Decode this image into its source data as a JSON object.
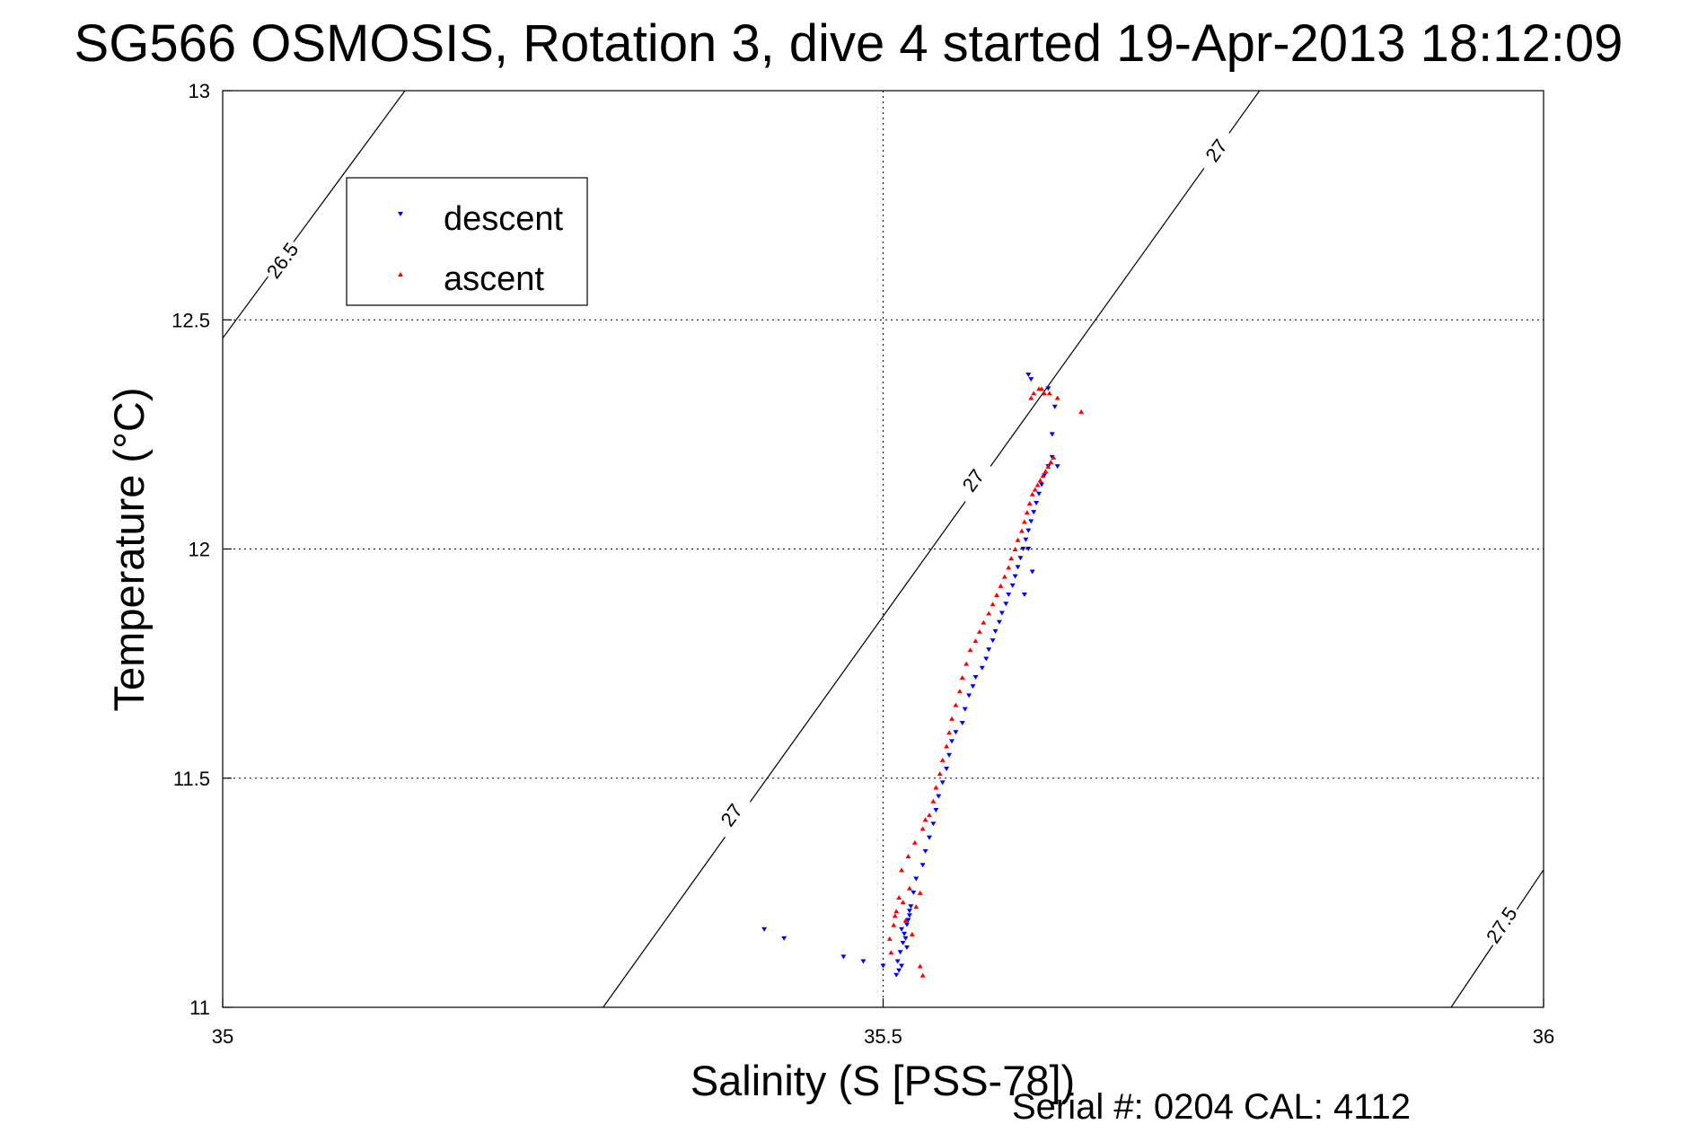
{
  "chart_data": {
    "type": "scatter",
    "title": "SG566 OSMOSIS, Rotation 3, dive 4 started 19-Apr-2013 18:12:09",
    "xlabel": "Salinity (S [PSS-78])",
    "ylabel": "Temperature (°C)",
    "xlim": [
      35,
      36
    ],
    "ylim": [
      11,
      13
    ],
    "xticks": [
      35,
      35.5,
      36
    ],
    "xtick_labels": [
      "35",
      "35.5",
      "36"
    ],
    "yticks": [
      11,
      11.5,
      12,
      12.5,
      13
    ],
    "ytick_labels": [
      "11",
      "11.5",
      "12",
      "12.5",
      "13"
    ],
    "grid": true,
    "legend_position": "top-left",
    "footnote": "Serial #: 0204  CAL: 4112",
    "isopycnals": [
      {
        "label": "26.5",
        "points": [
          [
            35.0,
            12.46
          ],
          [
            35.138,
            13.0
          ]
        ],
        "label_at": [
          35.045,
          12.63
        ]
      },
      {
        "label": "27",
        "points": [
          [
            35.288,
            11.0
          ],
          [
            35.785,
            13.0
          ]
        ],
        "label_at": [
          35.385,
          11.42
        ]
      },
      {
        "label": "27",
        "points": [
          [
            35.288,
            11.0
          ],
          [
            35.785,
            13.0
          ]
        ],
        "label_at": [
          35.568,
          12.15
        ]
      },
      {
        "label": "27",
        "points": [
          [
            35.288,
            11.0
          ],
          [
            35.785,
            13.0
          ]
        ],
        "label_at": [
          35.752,
          12.87
        ]
      },
      {
        "label": "27.5",
        "points": [
          [
            35.93,
            11.0
          ],
          [
            36.0,
            11.3
          ]
        ],
        "label_at": [
          35.968,
          11.18
        ]
      }
    ],
    "series": [
      {
        "name": "descent",
        "color": "#0000ff",
        "marker": "triangle-down",
        "x": [
          35.51,
          35.512,
          35.514,
          35.511,
          35.513,
          35.515,
          35.516,
          35.518,
          35.52,
          35.517,
          35.519,
          35.521,
          35.514,
          35.518,
          35.52,
          35.523,
          35.525,
          35.53,
          35.532,
          35.535,
          35.538,
          35.54,
          35.542,
          35.545,
          35.548,
          35.55,
          35.552,
          35.555,
          35.56,
          35.562,
          35.565,
          35.568,
          35.57,
          35.575,
          35.578,
          35.58,
          35.583,
          35.585,
          35.588,
          35.59,
          35.593,
          35.595,
          35.598,
          35.6,
          35.602,
          35.604,
          35.606,
          35.608,
          35.61,
          35.612,
          35.614,
          35.616,
          35.618,
          35.62,
          35.622,
          35.625,
          35.628,
          35.61,
          35.612,
          35.625,
          35.63,
          35.628,
          35.632,
          35.61,
          35.613,
          35.607,
          35.5,
          35.485,
          35.47,
          35.41,
          35.425
        ],
        "y": [
          11.07,
          11.08,
          11.09,
          11.1,
          11.12,
          11.14,
          11.16,
          11.18,
          11.2,
          11.15,
          11.19,
          11.22,
          11.17,
          11.13,
          11.21,
          11.25,
          11.28,
          11.31,
          11.34,
          11.37,
          11.4,
          11.43,
          11.46,
          11.49,
          11.52,
          11.55,
          11.58,
          11.6,
          11.62,
          11.65,
          11.68,
          11.7,
          11.72,
          11.74,
          11.76,
          11.78,
          11.8,
          11.82,
          11.84,
          11.86,
          11.88,
          11.9,
          11.92,
          11.94,
          11.96,
          11.98,
          12.0,
          12.02,
          12.04,
          12.06,
          12.08,
          12.1,
          12.12,
          12.14,
          12.16,
          12.18,
          12.2,
          12.38,
          12.37,
          12.35,
          12.31,
          12.25,
          12.18,
          12.0,
          11.95,
          11.9,
          11.09,
          11.1,
          11.11,
          11.17,
          11.15
        ]
      },
      {
        "name": "ascent",
        "color": "#ff0000",
        "marker": "triangle-up",
        "x": [
          35.505,
          35.508,
          35.51,
          35.512,
          35.506,
          35.509,
          35.515,
          35.52,
          35.525,
          35.517,
          35.522,
          35.528,
          35.514,
          35.519,
          35.524,
          35.53,
          35.535,
          35.532,
          35.538,
          35.54,
          35.543,
          35.545,
          35.548,
          35.55,
          35.552,
          35.555,
          35.558,
          35.56,
          35.563,
          35.566,
          35.57,
          35.573,
          35.576,
          35.58,
          35.583,
          35.586,
          35.589,
          35.592,
          35.595,
          35.597,
          35.6,
          35.602,
          35.605,
          35.607,
          35.609,
          35.611,
          35.613,
          35.615,
          35.617,
          35.619,
          35.621,
          35.623,
          35.625,
          35.627,
          35.629,
          35.612,
          35.614,
          35.62,
          35.626,
          35.632,
          35.622,
          35.618,
          35.65,
          35.53,
          35.528
        ],
        "y": [
          11.15,
          11.18,
          11.21,
          11.24,
          11.12,
          11.2,
          11.23,
          11.26,
          11.22,
          11.19,
          11.16,
          11.25,
          11.3,
          11.33,
          11.36,
          11.39,
          11.42,
          11.41,
          11.45,
          11.48,
          11.51,
          11.54,
          11.57,
          11.6,
          11.63,
          11.66,
          11.69,
          11.72,
          11.75,
          11.78,
          11.8,
          11.82,
          11.84,
          11.86,
          11.88,
          11.9,
          11.92,
          11.94,
          11.96,
          11.98,
          12.0,
          12.02,
          12.04,
          12.06,
          12.08,
          12.1,
          12.12,
          12.13,
          12.14,
          12.15,
          12.16,
          12.17,
          12.18,
          12.19,
          12.2,
          12.33,
          12.34,
          12.35,
          12.34,
          12.33,
          12.34,
          12.35,
          12.3,
          11.07,
          11.09
        ]
      }
    ]
  }
}
